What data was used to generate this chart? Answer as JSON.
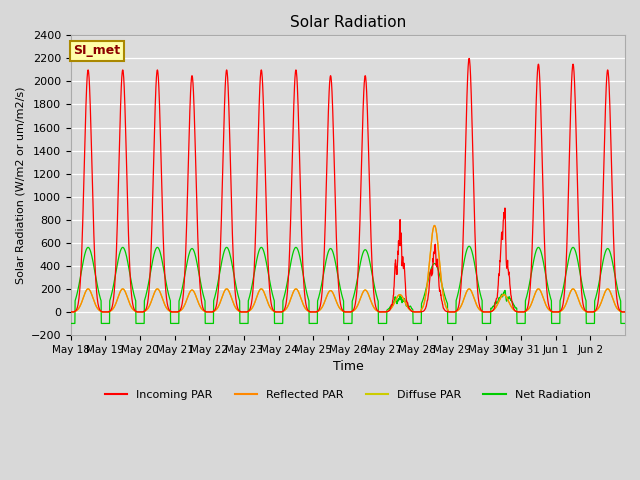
{
  "title": "Solar Radiation",
  "ylabel": "Solar Radiation (W/m2 or um/m2/s)",
  "xlabel": "Time",
  "ylim": [
    -200,
    2400
  ],
  "yticks": [
    -200,
    0,
    200,
    400,
    600,
    800,
    1000,
    1200,
    1400,
    1600,
    1800,
    2000,
    2200,
    2400
  ],
  "fig_bg_color": "#d8d8d8",
  "ax_bg_color": "#dcdcdc",
  "grid_color": "#ffffff",
  "annotation_text": "SI_met",
  "annotation_bg": "#ffffaa",
  "annotation_border": "#aa8800",
  "n_days": 16,
  "colors": {
    "incoming": "#ff0000",
    "reflected": "#ff8800",
    "diffuse": "#cccc00",
    "net": "#00cc00"
  },
  "legend_labels": [
    "Incoming PAR",
    "Reflected PAR",
    "Diffuse PAR",
    "Net Radiation"
  ],
  "x_tick_positions": [
    0,
    1,
    2,
    3,
    4,
    5,
    6,
    7,
    8,
    9,
    10,
    11,
    12,
    13,
    14,
    15
  ],
  "x_tick_labels": [
    "May 18",
    "May 19",
    "May 20",
    "May 21",
    "May 22",
    "May 23",
    "May 24",
    "May 25",
    "May 26",
    "May 27",
    "May 28",
    "May 29",
    "May 30",
    "May 31",
    "Jun 1",
    "Jun 2"
  ]
}
